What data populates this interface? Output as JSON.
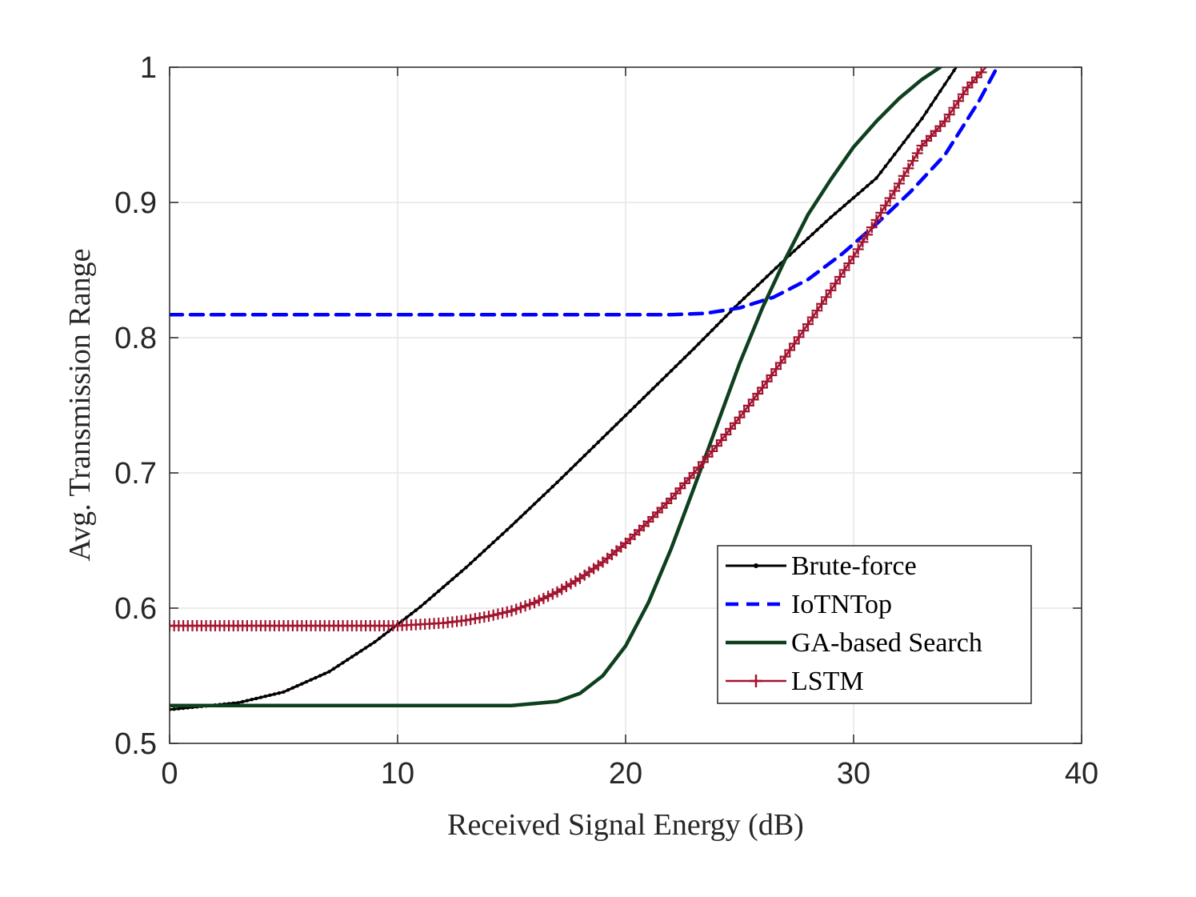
{
  "chart_data": {
    "type": "line",
    "title": "",
    "xlabel": "Received Signal Energy (dB)",
    "ylabel": "Avg. Transmission Range",
    "xlim": [
      0,
      40
    ],
    "ylim": [
      0.5,
      1
    ],
    "xticks": [
      0,
      10,
      20,
      30,
      40
    ],
    "xtick_labels": [
      "0",
      "10",
      "20",
      "30",
      "40"
    ],
    "yticks": [
      0.5,
      0.6,
      0.7,
      0.8,
      0.9,
      1
    ],
    "ytick_labels": [
      "0.5",
      "0.6",
      "0.7",
      "0.8",
      "0.9",
      "1"
    ],
    "grid": true,
    "legend_position": "bottom-right",
    "series": [
      {
        "name": "Brute-force",
        "color": "#000000",
        "style": "solid-dot-markers",
        "x": [
          0,
          3,
          5,
          7,
          9,
          10,
          11,
          13,
          15,
          17,
          19,
          21,
          23,
          25,
          27,
          29,
          31,
          33,
          34.5
        ],
        "y": [
          0.525,
          0.53,
          0.538,
          0.553,
          0.575,
          0.588,
          0.601,
          0.63,
          0.661,
          0.693,
          0.726,
          0.759,
          0.792,
          0.826,
          0.858,
          0.889,
          0.918,
          0.962,
          1.0
        ]
      },
      {
        "name": "IoTNTop",
        "color": "#0000ff",
        "style": "dashed",
        "x": [
          0,
          10,
          20,
          22,
          23.5,
          25,
          26.5,
          28,
          29.5,
          31,
          32.5,
          34,
          35.5,
          36.3
        ],
        "y": [
          0.817,
          0.817,
          0.817,
          0.817,
          0.818,
          0.822,
          0.83,
          0.843,
          0.862,
          0.884,
          0.908,
          0.935,
          0.975,
          1.0
        ]
      },
      {
        "name": "GA-based Search",
        "color": "#0e3f1e",
        "style": "solid-thick",
        "x": [
          0,
          10,
          15,
          17,
          18,
          19,
          20,
          21,
          22,
          23,
          24,
          25,
          26,
          27,
          28,
          29,
          30,
          31,
          32,
          33,
          33.8
        ],
        "y": [
          0.528,
          0.528,
          0.528,
          0.531,
          0.537,
          0.55,
          0.572,
          0.604,
          0.644,
          0.689,
          0.735,
          0.781,
          0.822,
          0.858,
          0.891,
          0.917,
          0.941,
          0.96,
          0.977,
          0.991,
          1.0
        ]
      },
      {
        "name": "LSTM",
        "color": "#a2142f",
        "style": "solid-plus-markers",
        "x": [
          0,
          3,
          5,
          7,
          9,
          10,
          11,
          12,
          13,
          14,
          15,
          16,
          17,
          18,
          19,
          20,
          21,
          22,
          23,
          24,
          25,
          26,
          27,
          28,
          29,
          30,
          31,
          32,
          33,
          34,
          35,
          35.8
        ],
        "y": [
          0.587,
          0.587,
          0.587,
          0.587,
          0.587,
          0.587,
          0.588,
          0.589,
          0.591,
          0.594,
          0.598,
          0.604,
          0.612,
          0.622,
          0.634,
          0.648,
          0.664,
          0.681,
          0.7,
          0.72,
          0.741,
          0.763,
          0.786,
          0.81,
          0.835,
          0.86,
          0.887,
          0.914,
          0.942,
          0.96,
          0.985,
          1.0
        ]
      }
    ]
  }
}
